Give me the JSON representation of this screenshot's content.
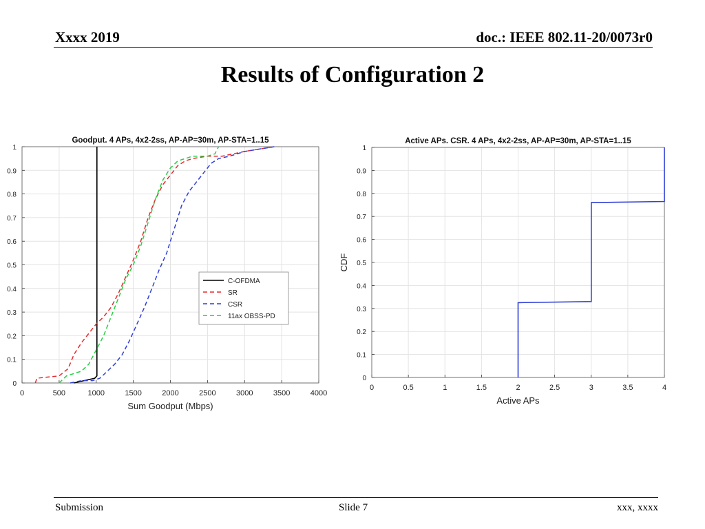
{
  "slide": {
    "header_left": "Xxxx 2019",
    "header_right": "doc.: IEEE 802.11-20/0073r0",
    "title": "Results of Configuration 2",
    "footer_left": "Submission",
    "footer_center": "Slide 7",
    "footer_right": "xxx, xxxx"
  },
  "chart_data": [
    {
      "type": "line",
      "title": "Goodput. 4 APs, 4x2-2ss, AP-AP=30m, AP-STA=1..15",
      "xlabel": "Sum Goodput (Mbps)",
      "ylabel": "",
      "xlim": [
        0,
        4000
      ],
      "ylim": [
        0,
        1
      ],
      "xticks": [
        "0",
        "500",
        "1000",
        "1500",
        "2000",
        "2500",
        "3000",
        "3500",
        "4000"
      ],
      "yticks": [
        "0",
        "0.1",
        "0.2",
        "0.3",
        "0.4",
        "0.5",
        "0.6",
        "0.7",
        "0.8",
        "0.9",
        "1"
      ],
      "grid": true,
      "legend_position": "center-right",
      "series": [
        {
          "name": "C-OFDMA",
          "color": "#000000",
          "dash": "solid",
          "x": [
            700,
            980,
            1010,
            1010
          ],
          "y": [
            0,
            0.02,
            0.03,
            1.0
          ]
        },
        {
          "name": "SR",
          "color": "#e8282b",
          "dash": "dashed",
          "x": [
            180,
            200,
            500,
            620,
            700,
            800,
            900,
            1000,
            1100,
            1200,
            1300,
            1400,
            1500,
            1600,
            1700,
            1800,
            1900,
            2000,
            2100,
            2200,
            2300,
            2500,
            2700,
            3000,
            3200,
            3400
          ],
          "y": [
            0,
            0.02,
            0.03,
            0.06,
            0.12,
            0.17,
            0.21,
            0.25,
            0.28,
            0.32,
            0.38,
            0.45,
            0.52,
            0.6,
            0.7,
            0.78,
            0.84,
            0.88,
            0.92,
            0.94,
            0.95,
            0.96,
            0.96,
            0.98,
            0.99,
            1.0
          ]
        },
        {
          "name": "CSR",
          "color": "#2f3fd6",
          "dash": "dashed",
          "x": [
            650,
            800,
            950,
            1050,
            1150,
            1250,
            1350,
            1450,
            1550,
            1650,
            1750,
            1850,
            1950,
            2050,
            2150,
            2250,
            2350,
            2450,
            2550,
            2650,
            2800,
            3000,
            3200,
            3400
          ],
          "y": [
            0,
            0.01,
            0.01,
            0.02,
            0.05,
            0.08,
            0.12,
            0.18,
            0.25,
            0.32,
            0.4,
            0.48,
            0.55,
            0.65,
            0.75,
            0.81,
            0.85,
            0.89,
            0.93,
            0.95,
            0.96,
            0.98,
            0.99,
            1.0
          ]
        },
        {
          "name": "11ax OBSS-PD",
          "color": "#22d040",
          "dash": "dashed",
          "x": [
            500,
            600,
            800,
            900,
            1000,
            1100,
            1200,
            1300,
            1400,
            1500,
            1600,
            1700,
            1800,
            1900,
            2000,
            2100,
            2200,
            2300,
            2400,
            2500,
            2600,
            2650
          ],
          "y": [
            0,
            0.03,
            0.05,
            0.08,
            0.14,
            0.2,
            0.28,
            0.36,
            0.44,
            0.5,
            0.58,
            0.68,
            0.78,
            0.86,
            0.91,
            0.94,
            0.95,
            0.96,
            0.96,
            0.96,
            0.97,
            1.0
          ]
        }
      ]
    },
    {
      "type": "line",
      "title": "Active APs. CSR. 4 APs, 4x2-2ss, AP-AP=30m, AP-STA=1..15",
      "xlabel": "Active APs",
      "ylabel": "CDF",
      "xlim": [
        0,
        4
      ],
      "ylim": [
        0,
        1
      ],
      "xticks": [
        "0",
        "0.5",
        "1",
        "1.5",
        "2",
        "2.5",
        "3",
        "3.5",
        "4"
      ],
      "yticks": [
        "0",
        "0.1",
        "0.2",
        "0.3",
        "0.4",
        "0.5",
        "0.6",
        "0.7",
        "0.8",
        "0.9",
        "1"
      ],
      "grid": true,
      "series": [
        {
          "name": "",
          "color": "#2f3fd6",
          "dash": "solid",
          "x": [
            2,
            2,
            3,
            3,
            4,
            4
          ],
          "y": [
            0,
            0.325,
            0.33,
            0.76,
            0.765,
            1.0
          ]
        }
      ]
    }
  ]
}
